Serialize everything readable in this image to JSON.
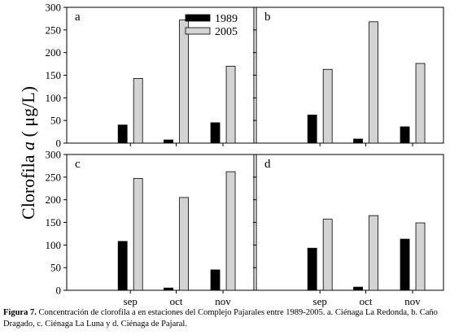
{
  "figure": {
    "ylabel_main": "Clorofila",
    "ylabel_italic": "a",
    "ylabel_unit": "( μg/L)",
    "caption_label": "Figura 7.",
    "caption_text": " Concentración de clorofila a en estaciones del Complejo Pajarales entre 1989-2005. a. Ciénaga La Redonda, b. Caño Dragado, c. Ciénaga La Luna y d. Ciénaga de Pajaral."
  },
  "colors": {
    "s1989": "#000000",
    "s2005": "#d3d3d3"
  },
  "chart_data": [
    {
      "type": "bar",
      "panel_label": "a",
      "categories": [
        "sep",
        "oct",
        "nov"
      ],
      "series": [
        {
          "name": "1989",
          "values": [
            40,
            7,
            45
          ]
        },
        {
          "name": "2005",
          "values": [
            143,
            272,
            170
          ]
        }
      ],
      "ylim": [
        0,
        300
      ],
      "yticks": [
        "0",
        "50",
        "100",
        "150",
        "200",
        "250",
        "300"
      ],
      "legend": "top-right",
      "grid": false
    },
    {
      "type": "bar",
      "panel_label": "b",
      "categories": [
        "sep",
        "oct",
        "nov"
      ],
      "series": [
        {
          "name": "1989",
          "values": [
            62,
            9,
            36
          ]
        },
        {
          "name": "2005",
          "values": [
            163,
            268,
            176
          ]
        }
      ],
      "ylim": [
        0,
        300
      ],
      "grid": false
    },
    {
      "type": "bar",
      "panel_label": "c",
      "categories": [
        "sep",
        "oct",
        "nov"
      ],
      "series": [
        {
          "name": "1989",
          "values": [
            108,
            5,
            45
          ]
        },
        {
          "name": "2005",
          "values": [
            247,
            205,
            262
          ]
        }
      ],
      "ylim": [
        0,
        300
      ],
      "yticks": [
        "0",
        "50",
        "100",
        "150",
        "200",
        "250",
        "300"
      ],
      "grid": false
    },
    {
      "type": "bar",
      "panel_label": "d",
      "categories": [
        "sep",
        "oct",
        "nov"
      ],
      "series": [
        {
          "name": "1989",
          "values": [
            93,
            7,
            113
          ]
        },
        {
          "name": "2005",
          "values": [
            157,
            165,
            149
          ]
        }
      ],
      "ylim": [
        0,
        300
      ],
      "grid": false
    }
  ]
}
